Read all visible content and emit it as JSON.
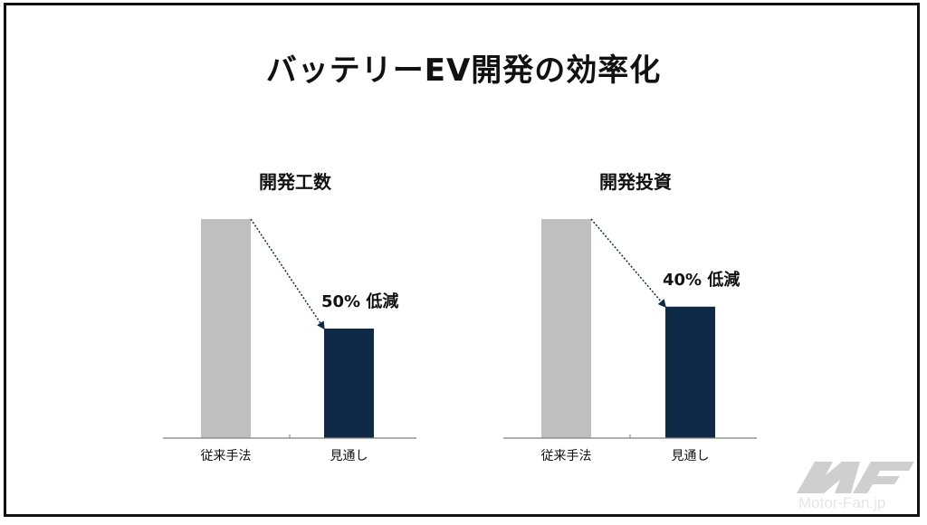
{
  "title": "バッテリーEV開発の効率化",
  "colors": {
    "baseline_bar": "#bfbfbf",
    "forecast_bar": "#0f2a47",
    "axis": "#7f7f7f",
    "text": "#111111"
  },
  "chart_data": [
    {
      "type": "bar",
      "title": "開発工数",
      "categories": [
        "従来手法",
        "見通し"
      ],
      "values": [
        100,
        50
      ],
      "ylim": [
        0,
        100
      ],
      "annotation": "50% 低減",
      "grid": false
    },
    {
      "type": "bar",
      "title": "開発投資",
      "categories": [
        "従来手法",
        "見通し"
      ],
      "values": [
        100,
        60
      ],
      "ylim": [
        0,
        100
      ],
      "annotation": "40% 低減",
      "grid": false
    }
  ],
  "watermark": "Motor-Fan.jp"
}
